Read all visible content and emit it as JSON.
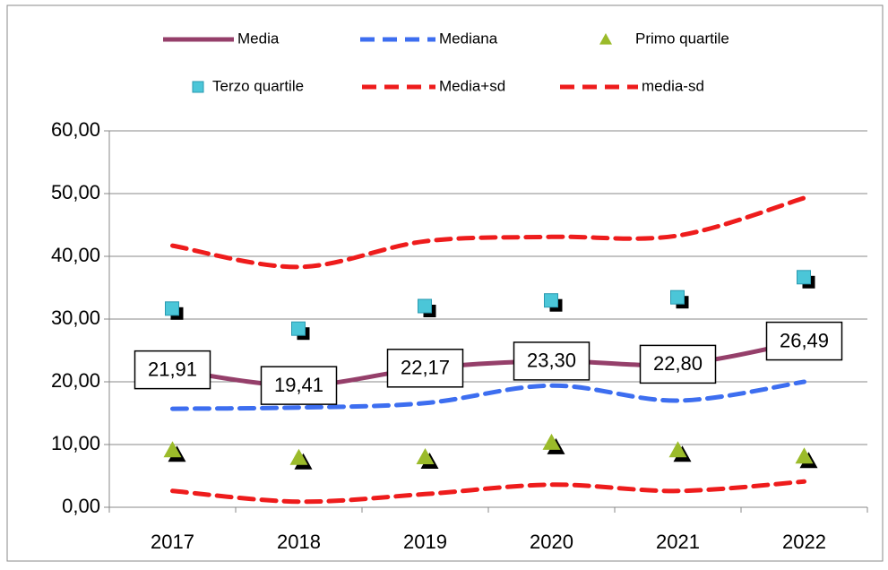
{
  "chart_data": {
    "type": "line",
    "categories": [
      "2017",
      "2018",
      "2019",
      "2020",
      "2021",
      "2022"
    ],
    "series": [
      {
        "name": "Media",
        "color": "#953f6a",
        "style": "solid",
        "values": [
          21.91,
          19.41,
          22.17,
          23.3,
          22.8,
          26.49
        ],
        "value_labels": [
          "21,91",
          "19,41",
          "22,17",
          "23,30",
          "22,80",
          "26,49"
        ]
      },
      {
        "name": "Mediana",
        "color": "#3d6ef0",
        "style": "dashed",
        "values": [
          15.7,
          15.9,
          16.6,
          19.4,
          17.0,
          20.0
        ]
      },
      {
        "name": "Primo quartile",
        "color": "#9bbb2a",
        "style": "triangle",
        "values": [
          9.1,
          7.9,
          8.0,
          10.3,
          9.1,
          8.1
        ]
      },
      {
        "name": "Terzo quartile",
        "color": "#4bc6d8",
        "style": "square",
        "values": [
          31.6,
          28.4,
          32.0,
          32.9,
          33.4,
          36.6
        ]
      },
      {
        "name": "Media+sd",
        "color": "#ee1c1c",
        "style": "dashed",
        "values": [
          41.7,
          38.3,
          42.4,
          43.1,
          43.3,
          49.3
        ]
      },
      {
        "name": "media-sd",
        "color": "#ee1c1c",
        "style": "dashed",
        "values": [
          2.6,
          0.9,
          2.1,
          3.6,
          2.6,
          4.1
        ]
      }
    ],
    "ylim": [
      0,
      60
    ],
    "yticks": [
      {
        "value": 0,
        "label": "0,00"
      },
      {
        "value": 10,
        "label": "10,00"
      },
      {
        "value": 20,
        "label": "20,00"
      },
      {
        "value": 30,
        "label": "30,00"
      },
      {
        "value": 40,
        "label": "40,00"
      },
      {
        "value": 50,
        "label": "50,00"
      },
      {
        "value": 60,
        "label": "60,00"
      }
    ],
    "grid": true
  }
}
